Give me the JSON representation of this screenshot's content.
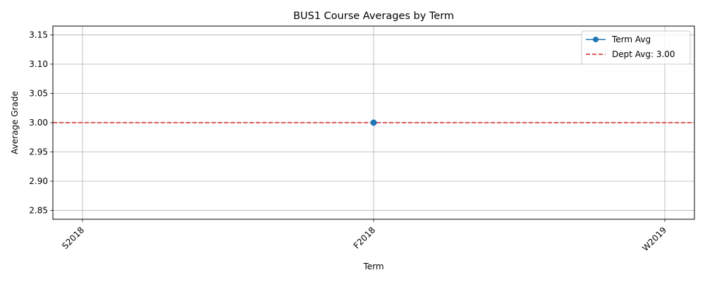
{
  "chart_data": {
    "type": "line",
    "title": "BUS1 Course Averages by Term",
    "xlabel": "Term",
    "ylabel": "Average Grade",
    "categories": [
      "S2018",
      "F2018",
      "W2019"
    ],
    "series": [
      {
        "name": "Term Avg",
        "values": [
          null,
          3.0,
          null
        ],
        "color": "#1f77b4",
        "marker": "circle"
      }
    ],
    "reference_lines": [
      {
        "name": "Dept Avg: 3.00",
        "value": 3.0,
        "color": "#d62728",
        "style": "dashed"
      }
    ],
    "ylim": [
      2.835,
      3.165
    ],
    "yticks": [
      2.85,
      2.9,
      2.95,
      3.0,
      3.05,
      3.1,
      3.15
    ],
    "ytick_labels": [
      "2.85",
      "2.90",
      "2.95",
      "3.00",
      "3.05",
      "3.10",
      "3.15"
    ],
    "grid": true,
    "legend_position": "top-right"
  }
}
